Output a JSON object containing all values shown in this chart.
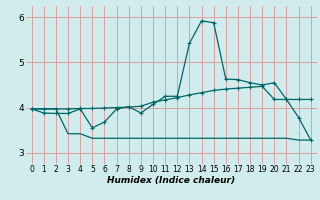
{
  "xlabel": "Humidex (Indice chaleur)",
  "bg_color": "#d0ecec",
  "grid_color": "#e0a0a0",
  "line_color": "#006666",
  "xlim": [
    -0.5,
    23.5
  ],
  "ylim": [
    2.75,
    6.25
  ],
  "yticks": [
    3,
    4,
    5,
    6
  ],
  "xticks": [
    0,
    1,
    2,
    3,
    4,
    5,
    6,
    7,
    8,
    9,
    10,
    11,
    12,
    13,
    14,
    15,
    16,
    17,
    18,
    19,
    20,
    21,
    22,
    23
  ],
  "line1_x": [
    0,
    1,
    2,
    3,
    4,
    5,
    6,
    7,
    8,
    9,
    10,
    11,
    12,
    13,
    14,
    15,
    16,
    17,
    18,
    19,
    20,
    21,
    22,
    23
  ],
  "line1_y": [
    3.97,
    3.88,
    3.87,
    3.87,
    3.97,
    3.55,
    3.68,
    3.97,
    4.02,
    3.88,
    4.07,
    4.25,
    4.25,
    5.42,
    5.92,
    5.88,
    4.63,
    4.62,
    4.55,
    4.5,
    4.55,
    4.18,
    3.78,
    3.28
  ],
  "line2_x": [
    0,
    1,
    2,
    3,
    4,
    5,
    6,
    7,
    8,
    9,
    10,
    11,
    12,
    13,
    14,
    15,
    16,
    17,
    18,
    19,
    20,
    21,
    22,
    23
  ],
  "line2_y": [
    3.97,
    3.97,
    3.97,
    3.97,
    3.98,
    3.98,
    3.99,
    4.0,
    4.01,
    4.03,
    4.12,
    4.17,
    4.22,
    4.28,
    4.33,
    4.38,
    4.41,
    4.43,
    4.45,
    4.47,
    4.18,
    4.18,
    4.18,
    4.18
  ],
  "line3_x": [
    0,
    1,
    2,
    3,
    4,
    5,
    6,
    7,
    8,
    9,
    10,
    11,
    12,
    13,
    14,
    15,
    16,
    17,
    18,
    19,
    20,
    21,
    22,
    23
  ],
  "line3_y": [
    3.97,
    3.97,
    3.97,
    3.42,
    3.42,
    3.32,
    3.32,
    3.32,
    3.32,
    3.32,
    3.32,
    3.32,
    3.32,
    3.32,
    3.32,
    3.32,
    3.32,
    3.32,
    3.32,
    3.32,
    3.32,
    3.32,
    3.28,
    3.28
  ],
  "tick_fontsize": 5.5,
  "xlabel_fontsize": 6.5
}
